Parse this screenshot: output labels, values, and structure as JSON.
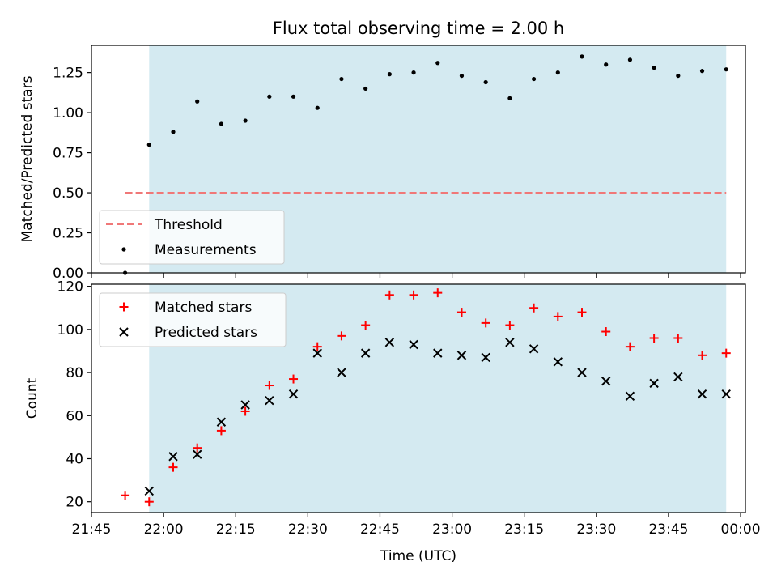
{
  "chart_data": [
    {
      "type": "scatter",
      "title": "Flux total observing time = 2.00 h",
      "ylabel": "Matched/Predicted stars",
      "xlim": [
        "21:45",
        "00:01"
      ],
      "ylim": [
        0,
        1.42
      ],
      "yticks": [
        0.0,
        0.25,
        0.5,
        0.75,
        1.0,
        1.25
      ],
      "ytick_labels": [
        "0.00",
        "0.25",
        "0.50",
        "0.75",
        "1.00",
        "1.25"
      ],
      "shaded_interval": [
        "21:57",
        "23:57"
      ],
      "shade_color": "#d4eaf1",
      "threshold": {
        "name": "Threshold",
        "value": 0.5,
        "x_range": [
          "21:52",
          "23:57"
        ],
        "color": "#f07878",
        "style": "dashed"
      },
      "series": [
        {
          "name": "Measurements",
          "color": "#000000",
          "marker": "dot",
          "points": [
            [
              "21:52",
              0.0
            ],
            [
              "21:57",
              0.8
            ],
            [
              "22:02",
              0.88
            ],
            [
              "22:07",
              1.07
            ],
            [
              "22:12",
              0.93
            ],
            [
              "22:17",
              0.95
            ],
            [
              "22:22",
              1.1
            ],
            [
              "22:27",
              1.1
            ],
            [
              "22:32",
              1.03
            ],
            [
              "22:37",
              1.21
            ],
            [
              "22:42",
              1.15
            ],
            [
              "22:47",
              1.24
            ],
            [
              "22:52",
              1.25
            ],
            [
              "22:57",
              1.31
            ],
            [
              "23:02",
              1.23
            ],
            [
              "23:07",
              1.19
            ],
            [
              "23:12",
              1.09
            ],
            [
              "23:17",
              1.21
            ],
            [
              "23:22",
              1.25
            ],
            [
              "23:27",
              1.35
            ],
            [
              "23:32",
              1.3
            ],
            [
              "23:37",
              1.33
            ],
            [
              "23:42",
              1.28
            ],
            [
              "23:47",
              1.23
            ],
            [
              "23:52",
              1.26
            ],
            [
              "23:57",
              1.27
            ]
          ]
        }
      ],
      "legend": {
        "placement": "lower-left",
        "entries": [
          "Threshold",
          "Measurements"
        ]
      }
    },
    {
      "type": "scatter",
      "xlabel": "Time (UTC)",
      "ylabel": "Count",
      "xlim": [
        "21:45",
        "00:01"
      ],
      "ylim": [
        15,
        121
      ],
      "xticks": [
        "21:45",
        "22:00",
        "22:15",
        "22:30",
        "22:45",
        "23:00",
        "23:15",
        "23:30",
        "23:45",
        "00:00"
      ],
      "yticks": [
        20,
        40,
        60,
        80,
        100,
        120
      ],
      "ytick_labels": [
        "20",
        "40",
        "60",
        "80",
        "100",
        "120"
      ],
      "shaded_interval": [
        "21:57",
        "23:57"
      ],
      "shade_color": "#d4eaf1",
      "series": [
        {
          "name": "Matched stars",
          "color": "#ff0000",
          "marker": "plus",
          "points": [
            [
              "21:52",
              23
            ],
            [
              "21:57",
              20
            ],
            [
              "22:02",
              36
            ],
            [
              "22:07",
              45
            ],
            [
              "22:12",
              53
            ],
            [
              "22:17",
              62
            ],
            [
              "22:22",
              74
            ],
            [
              "22:27",
              77
            ],
            [
              "22:32",
              92
            ],
            [
              "22:37",
              97
            ],
            [
              "22:42",
              102
            ],
            [
              "22:47",
              116
            ],
            [
              "22:52",
              116
            ],
            [
              "22:57",
              117
            ],
            [
              "23:02",
              108
            ],
            [
              "23:07",
              103
            ],
            [
              "23:12",
              102
            ],
            [
              "23:17",
              110
            ],
            [
              "23:22",
              106
            ],
            [
              "23:27",
              108
            ],
            [
              "23:32",
              99
            ],
            [
              "23:37",
              92
            ],
            [
              "23:42",
              96
            ],
            [
              "23:47",
              96
            ],
            [
              "23:52",
              88
            ],
            [
              "23:57",
              89
            ]
          ]
        },
        {
          "name": "Predicted stars",
          "color": "#000000",
          "marker": "x",
          "points": [
            [
              "21:57",
              25
            ],
            [
              "22:02",
              41
            ],
            [
              "22:07",
              42
            ],
            [
              "22:12",
              57
            ],
            [
              "22:17",
              65
            ],
            [
              "22:22",
              67
            ],
            [
              "22:27",
              70
            ],
            [
              "22:32",
              89
            ],
            [
              "22:37",
              80
            ],
            [
              "22:42",
              89
            ],
            [
              "22:47",
              94
            ],
            [
              "22:52",
              93
            ],
            [
              "22:57",
              89
            ],
            [
              "23:02",
              88
            ],
            [
              "23:07",
              87
            ],
            [
              "23:12",
              94
            ],
            [
              "23:17",
              91
            ],
            [
              "23:22",
              85
            ],
            [
              "23:27",
              80
            ],
            [
              "23:32",
              76
            ],
            [
              "23:37",
              69
            ],
            [
              "23:42",
              75
            ],
            [
              "23:47",
              78
            ],
            [
              "23:52",
              70
            ],
            [
              "23:57",
              70
            ]
          ]
        }
      ],
      "legend": {
        "placement": "top-left",
        "entries": [
          "Matched stars",
          "Predicted stars"
        ]
      }
    }
  ]
}
